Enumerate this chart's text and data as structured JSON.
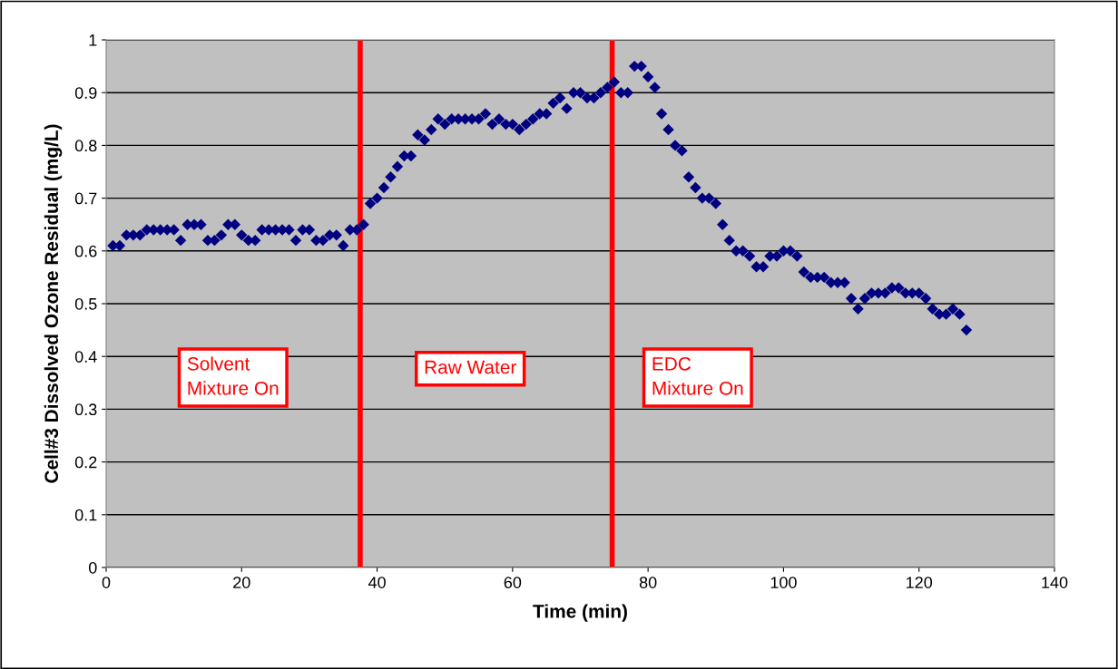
{
  "chart_data": {
    "type": "scatter",
    "xlabel": "Time (min)",
    "ylabel": "Cell#3 Dissolved Ozone Residual (mg/L)",
    "x": [
      1,
      2,
      3,
      4,
      5,
      6,
      7,
      8,
      9,
      10,
      11,
      12,
      13,
      14,
      15,
      16,
      17,
      18,
      19,
      20,
      21,
      22,
      23,
      24,
      25,
      26,
      27,
      28,
      29,
      30,
      31,
      32,
      33,
      34,
      35,
      36,
      37,
      38,
      39,
      40,
      41,
      42,
      43,
      44,
      45,
      46,
      47,
      48,
      49,
      50,
      51,
      52,
      53,
      54,
      55,
      56,
      57,
      58,
      59,
      60,
      61,
      62,
      63,
      64,
      65,
      66,
      67,
      68,
      69,
      70,
      71,
      72,
      73,
      74,
      75,
      76,
      77,
      78,
      79,
      80,
      81,
      82,
      83,
      84,
      85,
      86,
      87,
      88,
      89,
      90,
      91,
      92,
      93,
      94,
      95,
      96,
      97,
      98,
      99,
      100,
      101,
      102,
      103,
      104,
      105,
      106,
      107,
      108,
      109,
      110,
      111,
      112,
      113,
      114,
      115,
      116,
      117,
      118,
      119,
      120,
      121,
      122,
      123,
      124,
      125,
      126,
      127
    ],
    "series": [
      {
        "color": "#000080",
        "values": [
          0.61,
          0.61,
          0.63,
          0.63,
          0.63,
          0.64,
          0.64,
          0.64,
          0.64,
          0.64,
          0.62,
          0.65,
          0.65,
          0.65,
          0.62,
          0.62,
          0.63,
          0.65,
          0.65,
          0.63,
          0.62,
          0.62,
          0.64,
          0.64,
          0.64,
          0.64,
          0.64,
          0.62,
          0.64,
          0.64,
          0.62,
          0.62,
          0.63,
          0.63,
          0.61,
          0.64,
          0.64,
          0.65,
          0.69,
          0.7,
          0.72,
          0.74,
          0.76,
          0.78,
          0.78,
          0.82,
          0.81,
          0.83,
          0.85,
          0.84,
          0.85,
          0.85,
          0.85,
          0.85,
          0.85,
          0.86,
          0.84,
          0.85,
          0.84,
          0.84,
          0.83,
          0.84,
          0.85,
          0.86,
          0.86,
          0.88,
          0.89,
          0.87,
          0.9,
          0.9,
          0.89,
          0.89,
          0.9,
          0.91,
          0.92,
          0.9,
          0.9,
          0.95,
          0.95,
          0.93,
          0.91,
          0.86,
          0.83,
          0.8,
          0.79,
          0.74,
          0.72,
          0.7,
          0.7,
          0.69,
          0.65,
          0.62,
          0.6,
          0.6,
          0.59,
          0.57,
          0.57,
          0.59,
          0.59,
          0.6,
          0.6,
          0.59,
          0.56,
          0.55,
          0.55,
          0.55,
          0.54,
          0.54,
          0.54,
          0.51,
          0.49,
          0.51,
          0.52,
          0.52,
          0.52,
          0.53,
          0.53,
          0.52,
          0.52,
          0.52,
          0.51,
          0.49,
          0.48,
          0.48,
          0.49,
          0.48,
          0.45
        ]
      }
    ],
    "marker": "diamond",
    "grid": "y",
    "xlim": [
      0,
      140
    ],
    "xticks": [
      0,
      20,
      40,
      60,
      80,
      100,
      120,
      140
    ],
    "ylim": [
      0,
      1
    ],
    "yticks": [
      0,
      0.1,
      0.2,
      0.3,
      0.4,
      0.5,
      0.6,
      0.7,
      0.8,
      0.9,
      1
    ],
    "ref_lines": [
      {
        "axis": "x",
        "value": 37.5,
        "color": "#ff0000"
      },
      {
        "axis": "x",
        "value": 74.7,
        "color": "#ff0000"
      }
    ],
    "annotations": [
      "Solvent\nMixture On",
      "Raw Water",
      "EDC\nMixture On"
    ]
  }
}
